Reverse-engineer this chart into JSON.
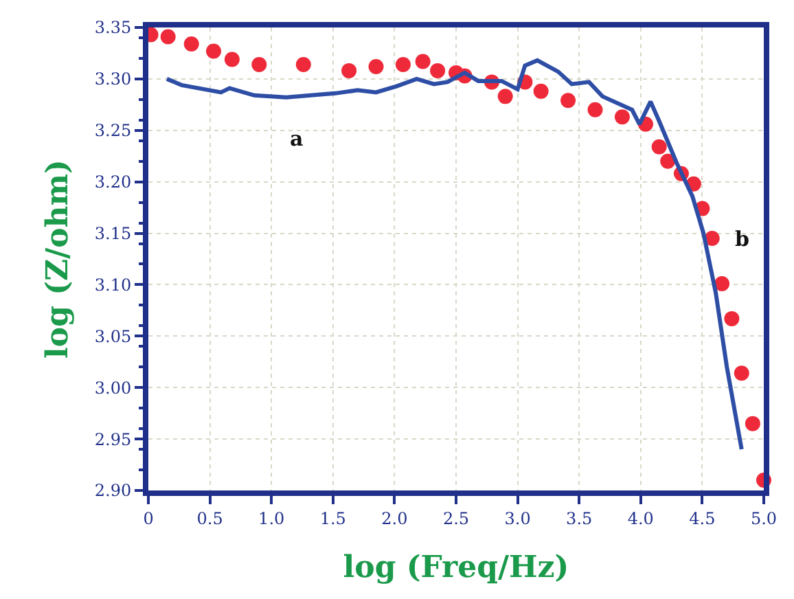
{
  "chart_data": {
    "type": "line",
    "xlabel": "log (Freq/Hz)",
    "ylabel": "log (Z/ohm)",
    "xlim": [
      0,
      5
    ],
    "ylim": [
      2.9,
      3.35
    ],
    "xticks": [
      0,
      {
        "value": 0.5,
        "label": "0.5"
      },
      {
        "value": 1,
        "label": "1.0"
      },
      {
        "value": 1.5,
        "label": "1.5"
      },
      {
        "value": 2,
        "label": "2.0"
      },
      {
        "value": 2.5,
        "label": "2.5"
      },
      {
        "value": 3,
        "label": "3.0"
      },
      {
        "value": 3.5,
        "label": "3.5"
      },
      {
        "value": 4,
        "label": "4.0"
      },
      {
        "value": 4.5,
        "label": "4.5"
      },
      {
        "value": 5,
        "label": "5.0"
      }
    ],
    "yticks": [
      {
        "value": 2.9,
        "label": "2.90"
      },
      2.95,
      {
        "value": 3.0,
        "label": "3.00"
      },
      3.05,
      {
        "value": 3.1,
        "label": "3.10"
      },
      3.15,
      {
        "value": 3.2,
        "label": "3.20"
      },
      3.25,
      {
        "value": 3.3,
        "label": "3.30"
      },
      3.35
    ],
    "grid": true,
    "annotations": [
      "a",
      "b"
    ],
    "series": [
      {
        "color": "#2e4ea6",
        "marker": "none",
        "line_style": "solid",
        "x": [
          0.15,
          0.27,
          0.59,
          0.66,
          0.86,
          1.12,
          1.52,
          1.7,
          1.85,
          2.02,
          2.18,
          2.32,
          2.43,
          2.57,
          2.68,
          2.87,
          3.0,
          3.06,
          3.16,
          3.33,
          3.44,
          3.58,
          3.69,
          3.93,
          3.99,
          4.08,
          4.15,
          4.29,
          4.42,
          4.51,
          4.61,
          4.7,
          4.82
        ],
        "values": [
          3.3,
          3.294,
          3.287,
          3.291,
          3.284,
          3.282,
          3.286,
          3.289,
          3.287,
          3.293,
          3.3,
          3.295,
          3.297,
          3.306,
          3.298,
          3.298,
          3.29,
          3.313,
          3.318,
          3.307,
          3.295,
          3.297,
          3.283,
          3.27,
          3.256,
          3.278,
          3.259,
          3.219,
          3.186,
          3.15,
          3.092,
          3.02,
          2.94
        ]
      },
      {
        "type": "scatter",
        "color": "#ee2a3a",
        "marker": "circle",
        "x": [
          0.02,
          0.16,
          0.35,
          0.53,
          0.68,
          0.9,
          1.26,
          1.63,
          1.85,
          2.07,
          2.23,
          2.35,
          2.5,
          2.57,
          2.79,
          2.9,
          3.06,
          3.19,
          3.41,
          3.63,
          3.85,
          4.04,
          4.15,
          4.22,
          4.33,
          4.43,
          4.5,
          4.58,
          4.66,
          4.74,
          4.82,
          4.91,
          5.0
        ],
        "values": [
          3.343,
          3.341,
          3.334,
          3.327,
          3.319,
          3.314,
          3.314,
          3.308,
          3.312,
          3.314,
          3.317,
          3.308,
          3.306,
          3.303,
          3.297,
          3.283,
          3.297,
          3.288,
          3.279,
          3.27,
          3.263,
          3.256,
          3.234,
          3.22,
          3.208,
          3.198,
          3.174,
          3.145,
          3.101,
          3.067,
          3.014,
          2.965,
          2.91
        ]
      }
    ]
  }
}
